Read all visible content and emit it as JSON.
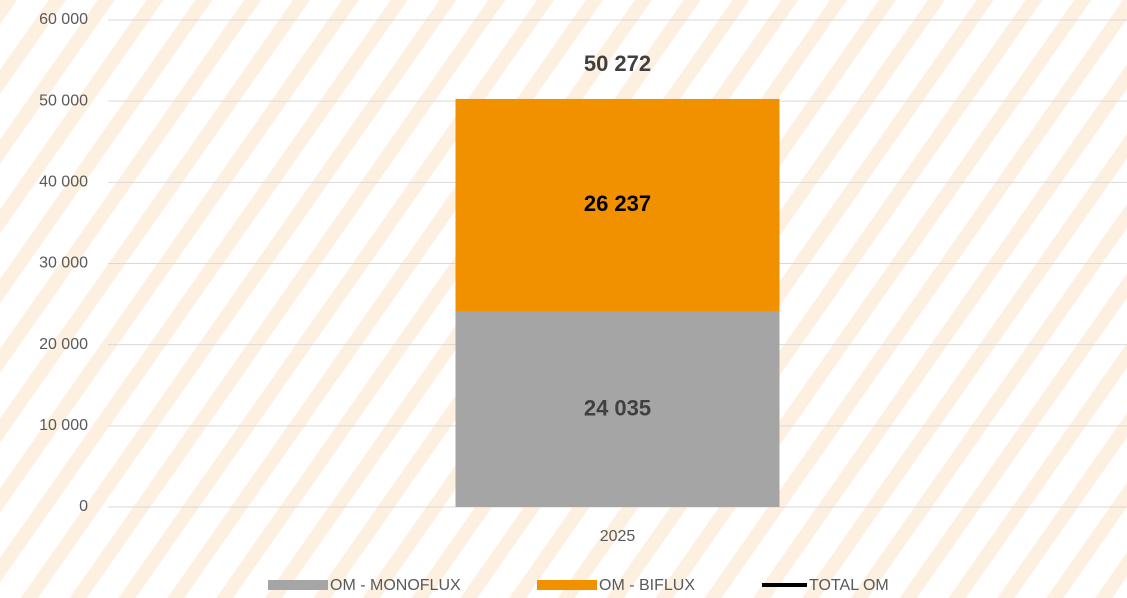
{
  "chart_data": {
    "type": "bar",
    "stacked": true,
    "categories": [
      "2025"
    ],
    "series": [
      {
        "name": "OM - MONOFLUX",
        "color": "#a5a5a5",
        "values": [
          24035
        ],
        "value_labels": [
          "24 035"
        ]
      },
      {
        "name": "OM - BIFLUX",
        "color": "#f29100",
        "values": [
          26237
        ],
        "value_labels": [
          "26 237"
        ]
      },
      {
        "name": "TOTAL OM",
        "type": "line",
        "color": "#000000",
        "values": [
          50272
        ],
        "value_labels": [
          "50 272"
        ]
      }
    ],
    "ylim": [
      0,
      60000
    ],
    "yticks": [
      0,
      {
        "value": 10000,
        "label": "10 000"
      },
      {
        "value": 20000,
        "label": "20 000"
      },
      {
        "value": 30000,
        "label": "30 000"
      },
      {
        "value": 40000,
        "label": "40 000"
      },
      {
        "value": 50000,
        "label": "50 000"
      },
      {
        "value": 60000,
        "label": "60 000"
      }
    ],
    "grid": true,
    "legend": "bottom"
  }
}
